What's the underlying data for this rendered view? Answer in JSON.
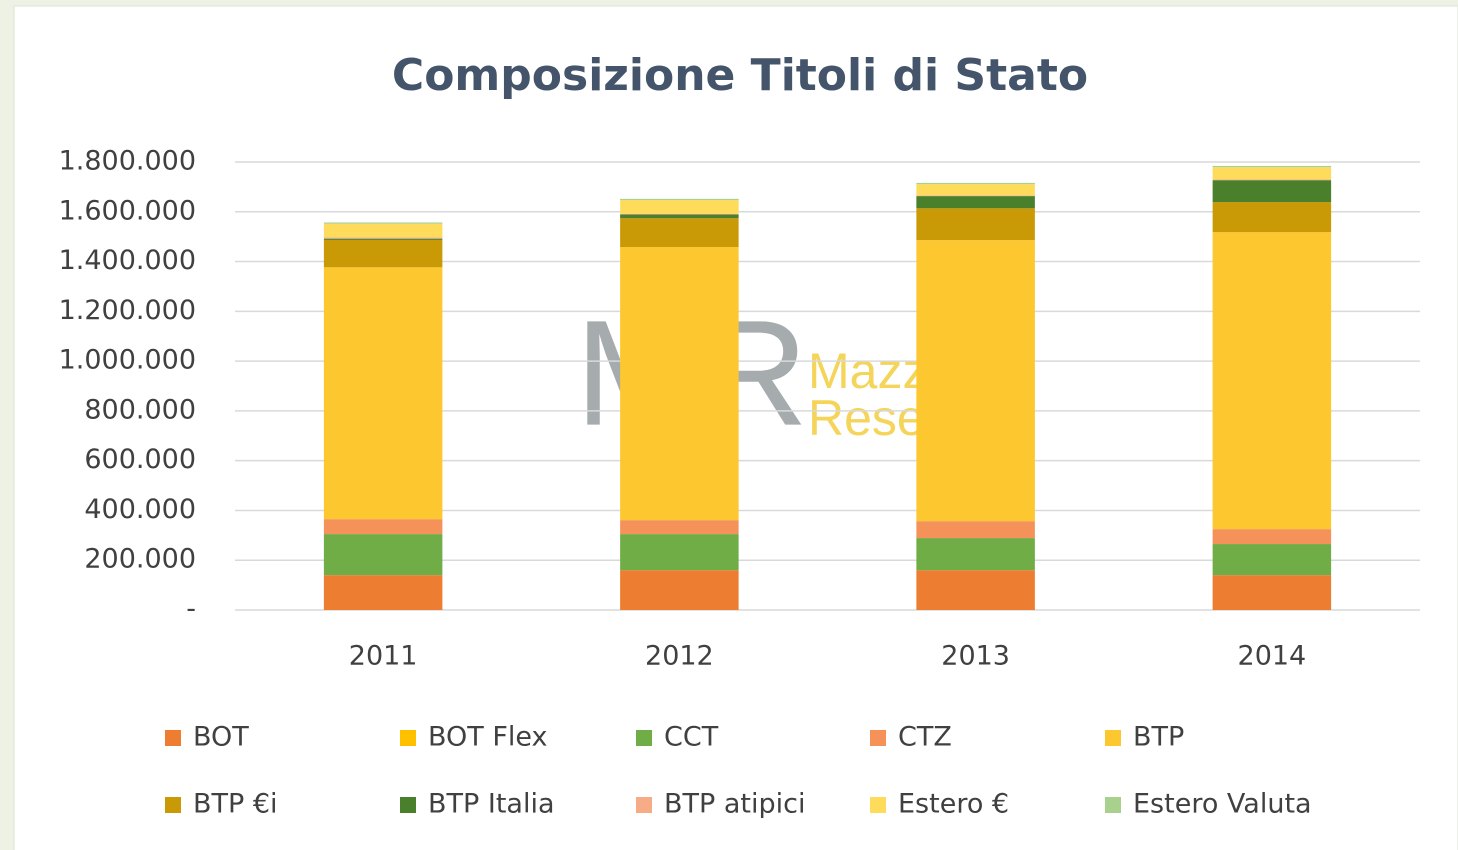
{
  "chart_data": {
    "type": "stacked_bar",
    "title": "Composizione Titoli di Stato",
    "watermark": {
      "logo": "MR",
      "lines": [
        "Mazzero",
        "Research"
      ]
    },
    "categories": [
      "2011",
      "2012",
      "2013",
      "2014"
    ],
    "series": [
      {
        "name": "BOT",
        "color": "#ed7d31",
        "values": [
          140000,
          160000,
          160000,
          140000
        ]
      },
      {
        "name": "BOT Flex",
        "color": "#ffc000",
        "values": [
          0,
          0,
          0,
          0
        ]
      },
      {
        "name": "CCT",
        "color": "#70ad47",
        "values": [
          165000,
          145000,
          129000,
          125000
        ]
      },
      {
        "name": "CTZ",
        "color": "#f4925a",
        "values": [
          60000,
          56000,
          68000,
          60000
        ]
      },
      {
        "name": "BTP",
        "color": "#fdc82f",
        "values": [
          1012000,
          1097000,
          1129000,
          1193000
        ]
      },
      {
        "name": "BTP €i",
        "color": "#c99a06",
        "values": [
          110000,
          116000,
          128000,
          121000
        ]
      },
      {
        "name": "BTP Italia",
        "color": "#4a7f2c",
        "values": [
          5000,
          15000,
          49000,
          88000
        ]
      },
      {
        "name": "BTP atipici",
        "color": "#f6ad86",
        "values": [
          5000,
          3000,
          3000,
          3000
        ]
      },
      {
        "name": "Estero €",
        "color": "#ffdb5c",
        "values": [
          55000,
          55000,
          45000,
          49000
        ]
      },
      {
        "name": "Estero Valuta",
        "color": "#a9d18e",
        "values": [
          5000,
          5000,
          5000,
          5000
        ]
      }
    ],
    "ylim": [
      0,
      1800000
    ],
    "yticks": [
      {
        "value": 0,
        "label": "-"
      },
      {
        "value": 200000,
        "label": "200.000"
      },
      {
        "value": 400000,
        "label": "400.000"
      },
      {
        "value": 600000,
        "label": "600.000"
      },
      {
        "value": 800000,
        "label": "800.000"
      },
      {
        "value": 1000000,
        "label": "1.000.000"
      },
      {
        "value": 1200000,
        "label": "1.200.000"
      },
      {
        "value": 1400000,
        "label": "1.400.000"
      },
      {
        "value": 1600000,
        "label": "1.600.000"
      },
      {
        "value": 1800000,
        "label": "1.800.000"
      }
    ],
    "grid": true
  }
}
